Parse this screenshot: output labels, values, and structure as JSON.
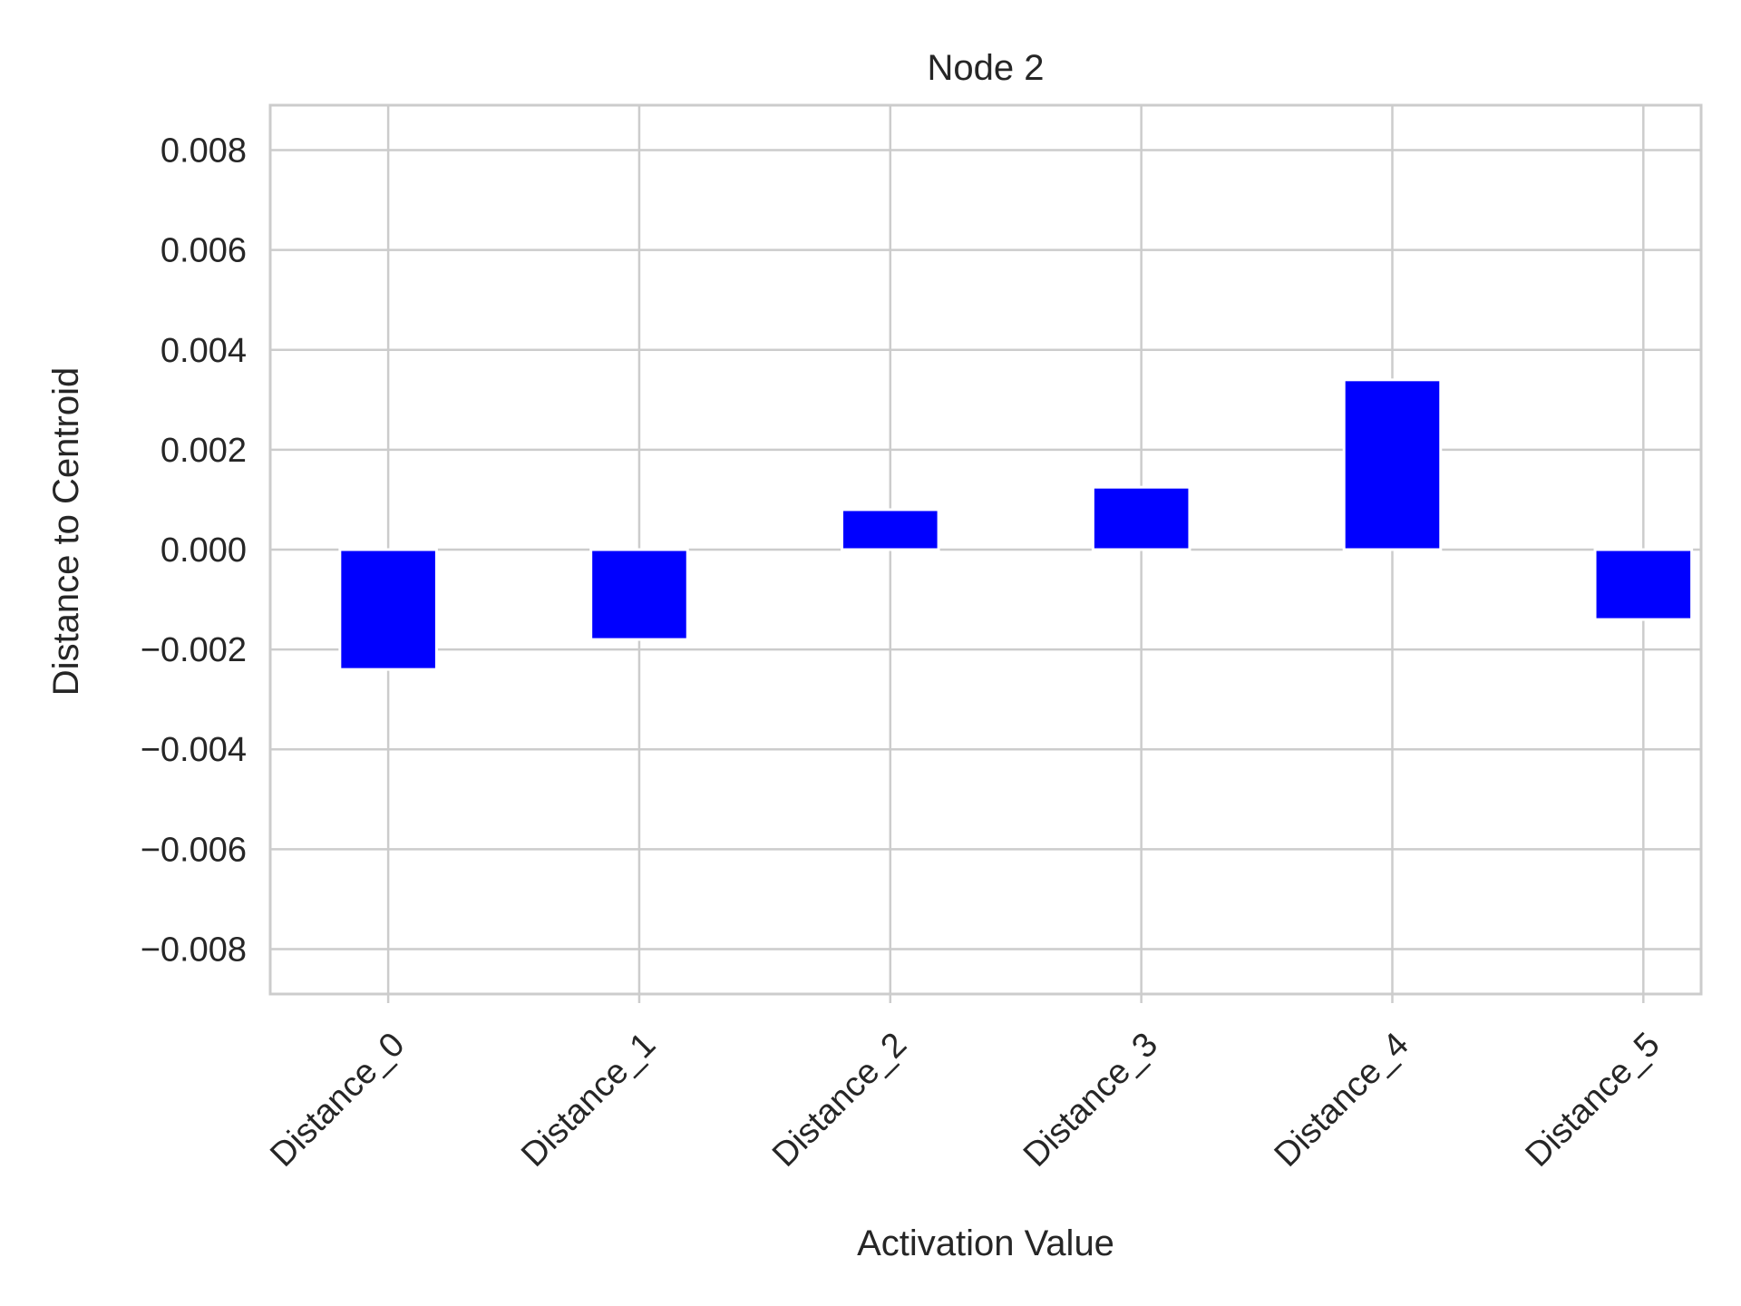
{
  "chart_data": {
    "type": "bar",
    "title": "Node 2",
    "xlabel": "Activation Value",
    "ylabel": "Distance to Centroid",
    "categories": [
      "Distance_0",
      "Distance_1",
      "Distance_2",
      "Distance_3",
      "Distance_4",
      "Distance_5"
    ],
    "values": [
      -0.0024,
      -0.0018,
      0.0008,
      0.00125,
      0.0034,
      -0.0014
    ],
    "ylim": [
      -0.0089,
      0.0089
    ],
    "yticks": [
      -0.008,
      -0.006,
      -0.004,
      -0.002,
      0.0,
      0.002,
      0.004,
      0.006,
      0.008
    ],
    "ytick_labels": [
      "−0.008",
      "−0.006",
      "−0.004",
      "−0.002",
      "0.000",
      "0.002",
      "0.004",
      "0.006",
      "0.008"
    ],
    "grid": true,
    "bar_color": "#0000ff",
    "grid_color": "#cccccc",
    "x_tick_rotation": 45
  }
}
